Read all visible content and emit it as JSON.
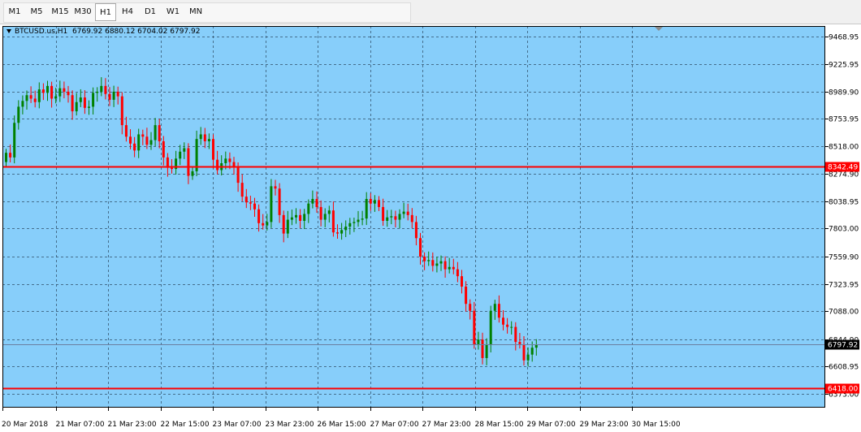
{
  "timeframes": [
    {
      "label": "M1",
      "active": false
    },
    {
      "label": "M5",
      "active": false
    },
    {
      "label": "M15",
      "active": false
    },
    {
      "label": "M30",
      "active": false
    },
    {
      "label": "H1",
      "active": true
    },
    {
      "label": "H4",
      "active": false
    },
    {
      "label": "D1",
      "active": false
    },
    {
      "label": "W1",
      "active": false
    },
    {
      "label": "MN",
      "active": false
    }
  ],
  "header": {
    "symbol": "BTCUSD.us,H1",
    "ohlc": "6769.92 6880.12 6704.02 6797.92"
  },
  "colors": {
    "background": "#87cefa",
    "grid": "#2f4f68",
    "bull": "#008000",
    "bear": "#ff0000",
    "hline": "#ff0000",
    "bid_line": "#6a7fa0"
  },
  "chart_data": {
    "type": "candlestick",
    "title": "BTCUSD.us,H1",
    "ylim": [
      6250,
      9560
    ],
    "y_ticks": [
      "9468.95",
      "9225.95",
      "8989.90",
      "8753.95",
      "8518.00",
      "8274.90",
      "8038.95",
      "7803.00",
      "7559.90",
      "7323.95",
      "7088.00",
      "6844.90",
      "6608.95",
      "6373.00"
    ],
    "x_ticks": [
      "20 Mar 2018",
      "21 Mar 07:00",
      "21 Mar 23:00",
      "22 Mar 15:00",
      "23 Mar 07:00",
      "23 Mar 23:00",
      "26 Mar 15:00",
      "27 Mar 07:00",
      "27 Mar 23:00",
      "28 Mar 15:00",
      "29 Mar 07:00",
      "29 Mar 23:00",
      "30 Mar 15:00"
    ],
    "horizontal_lines": [
      {
        "price": 8342.49,
        "label": "8342.49"
      },
      {
        "price": 6418.0,
        "label": "6418.00"
      }
    ],
    "bid_price": {
      "price": 6797.92,
      "label": "6797.92"
    },
    "grid": true,
    "series_close": [
      8460,
      8420,
      8720,
      8860,
      8910,
      8960,
      8930,
      8900,
      9010,
      8980,
      9040,
      8930,
      8950,
      9020,
      8990,
      8960,
      8820,
      8900,
      8940,
      8850,
      8860,
      8980,
      8990,
      9040,
      8970,
      8920,
      8990,
      8950,
      8700,
      8600,
      8540,
      8480,
      8620,
      8600,
      8530,
      8570,
      8700,
      8560,
      8420,
      8330,
      8320,
      8410,
      8470,
      8500,
      8260,
      8300,
      8580,
      8620,
      8560,
      8580,
      8400,
      8310,
      8370,
      8410,
      8380,
      8340,
      8200,
      8080,
      8030,
      8020,
      7970,
      7850,
      7830,
      7860,
      8170,
      8150,
      7920,
      7760,
      7880,
      7900,
      7920,
      7870,
      7930,
      8020,
      8060,
      7990,
      7880,
      7930,
      7960,
      7770,
      7760,
      7790,
      7820,
      7850,
      7860,
      7880,
      7890,
      8060,
      8020,
      8050,
      7990,
      7870,
      7900,
      7910,
      7880,
      7930,
      7950,
      7920,
      7860,
      7720,
      7560,
      7520,
      7530,
      7480,
      7500,
      7520,
      7450,
      7470,
      7450,
      7390,
      7300,
      7150,
      7090,
      6800,
      6840,
      6680,
      6800,
      7090,
      7150,
      7030,
      6970,
      6950,
      6950,
      6820,
      6800,
      6660,
      6710,
      6770,
      6797.92
    ]
  }
}
